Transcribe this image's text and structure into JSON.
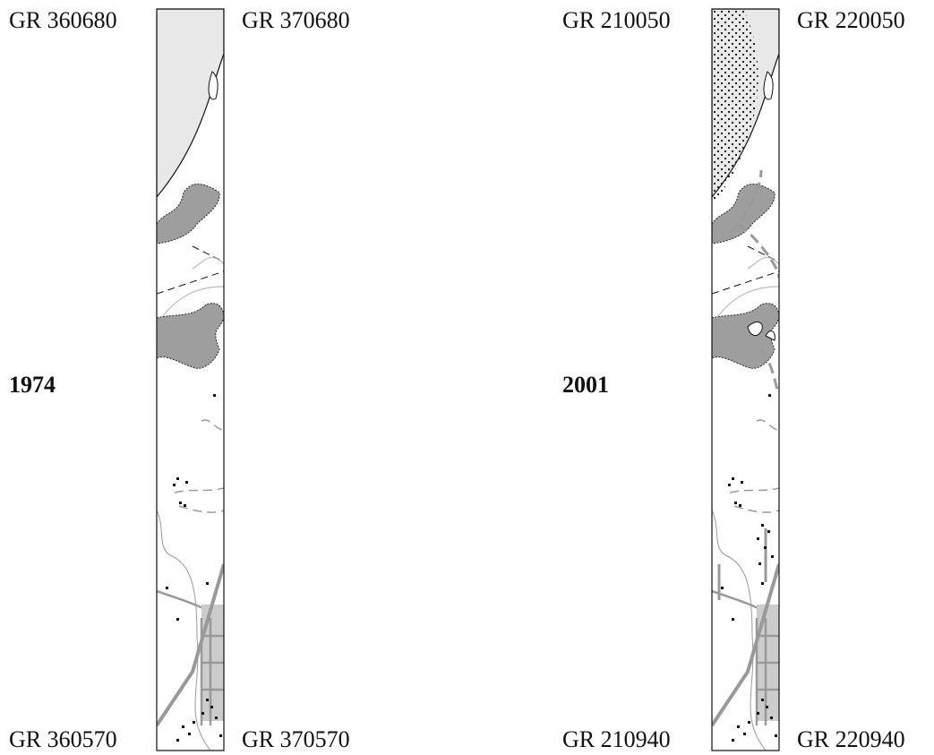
{
  "panels": [
    {
      "year": "1974",
      "top_left": "GR 360680",
      "top_right": "GR 370680",
      "bottom_left": "GR 360570",
      "bottom_right": "GR 370570"
    },
    {
      "year": "2001",
      "top_left": "GR 210050",
      "top_right": "GR 220050",
      "bottom_left": "GR 210940",
      "bottom_right": "GR 220940"
    }
  ]
}
